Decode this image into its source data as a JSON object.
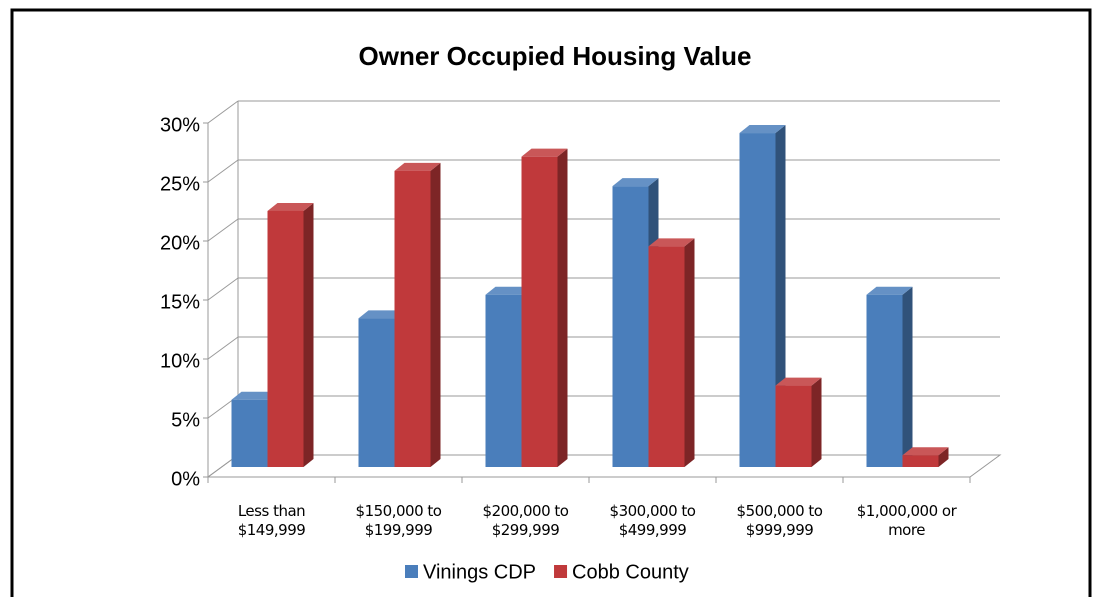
{
  "chart_data": {
    "type": "bar3d",
    "title": "Owner Occupied Housing Value",
    "categories": [
      "Less than $149,999",
      "$150,000 to $199,999",
      "$200,000 to $299,999",
      "$300,000 to $499,999",
      "$500,000 to $999,999",
      "$1,000,000 or more"
    ],
    "series": [
      {
        "name": "Vinings CDP",
        "color": "#4a7ebb",
        "values": [
          5.7,
          12.6,
          14.6,
          23.8,
          28.3,
          14.6
        ]
      },
      {
        "name": "Cobb County",
        "color": "#c0393b",
        "values": [
          21.7,
          25.1,
          26.3,
          18.7,
          6.9,
          1.0
        ]
      }
    ],
    "ylim": [
      0,
      30
    ],
    "yticks": [
      {
        "value": 0,
        "label": "0%"
      },
      {
        "value": 5,
        "label": "5%"
      },
      {
        "value": 10,
        "label": "10%"
      },
      {
        "value": 15,
        "label": "15%"
      },
      {
        "value": 20,
        "label": "20%"
      },
      {
        "value": 25,
        "label": "25%"
      },
      {
        "value": 30,
        "label": "30%"
      }
    ],
    "grid": true,
    "legend": "bottom"
  }
}
